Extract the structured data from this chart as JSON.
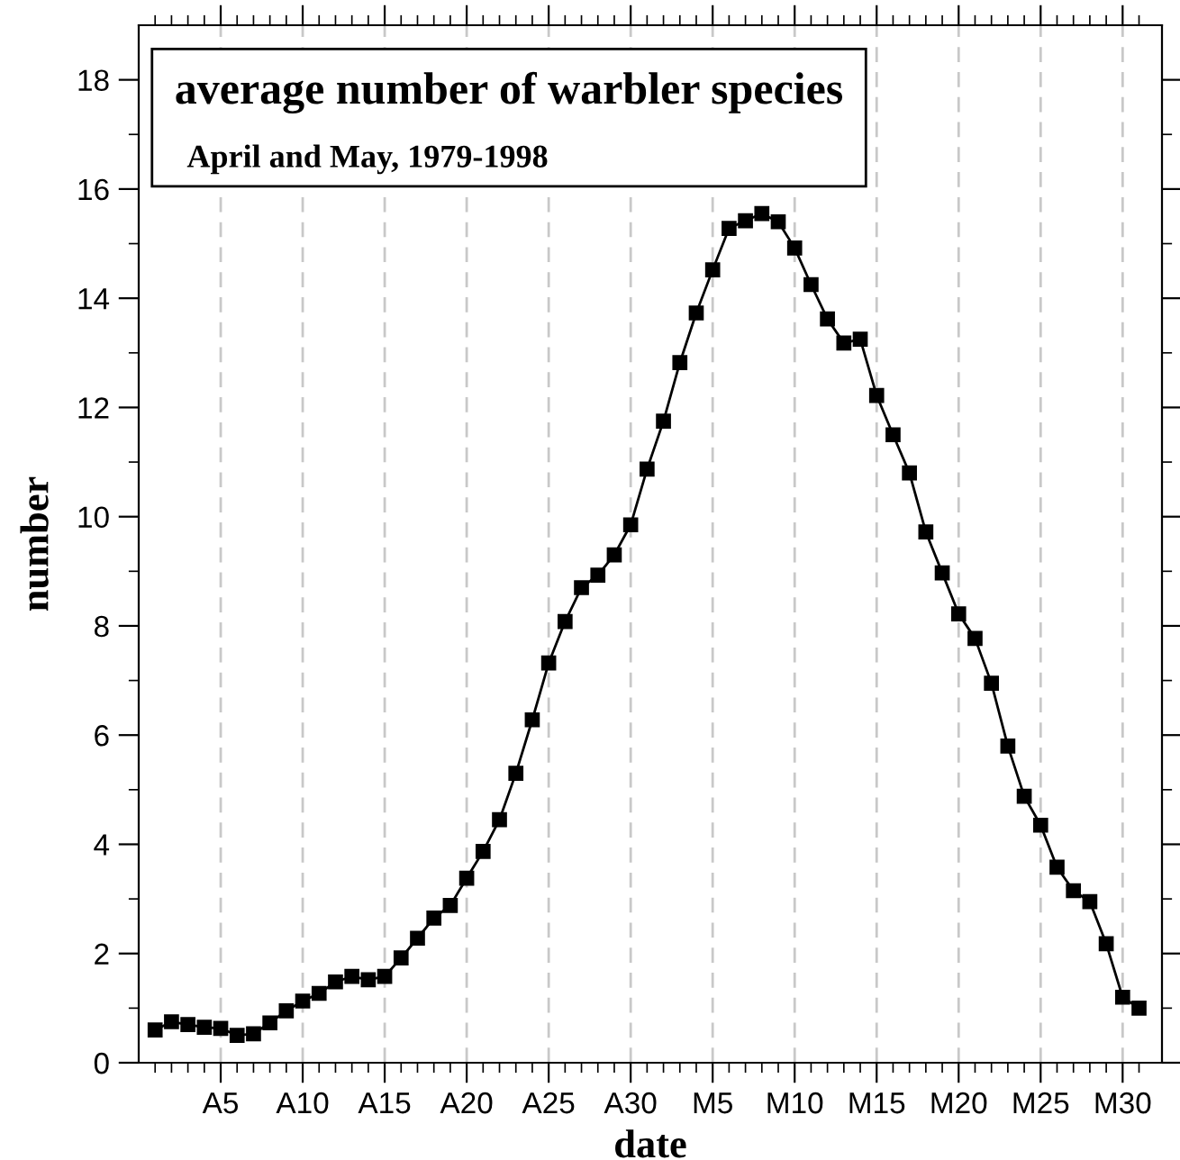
{
  "chart_data": {
    "type": "line",
    "title": "average number of warbler species",
    "subtitle": "April and May, 1979-1998",
    "xlabel": "date",
    "ylabel": "number",
    "categories": [
      null,
      null,
      null,
      null,
      "A5",
      null,
      null,
      null,
      null,
      "A10",
      null,
      null,
      null,
      null,
      "A15",
      null,
      null,
      null,
      null,
      "A20",
      null,
      null,
      null,
      null,
      "A25",
      null,
      null,
      null,
      null,
      "A30",
      null,
      null,
      null,
      null,
      "M5",
      null,
      null,
      null,
      null,
      "M10",
      null,
      null,
      null,
      null,
      "M15",
      null,
      null,
      null,
      null,
      "M20",
      null,
      null,
      null,
      null,
      "M25",
      null,
      null,
      null,
      null,
      "M30",
      null
    ],
    "series": [
      {
        "color": "#000000",
        "values": [
          0.6,
          0.75,
          0.7,
          0.65,
          0.63,
          0.5,
          0.53,
          0.73,
          0.95,
          1.13,
          1.27,
          1.48,
          1.58,
          1.52,
          1.58,
          1.92,
          2.28,
          2.65,
          2.88,
          3.38,
          3.87,
          4.45,
          5.3,
          6.28,
          7.32,
          8.08,
          8.7,
          8.93,
          9.3,
          9.85,
          10.87,
          11.75,
          12.82,
          13.73,
          14.52,
          15.28,
          15.42,
          15.55,
          15.4,
          14.92,
          14.25,
          13.62,
          13.18,
          13.25,
          12.22,
          11.5,
          10.8,
          9.72,
          8.97,
          8.22,
          7.77,
          6.95,
          5.8,
          4.88,
          4.35,
          3.58,
          3.15,
          2.95,
          2.18,
          1.2,
          1.0
        ]
      }
    ],
    "ylim": [
      0,
      19
    ],
    "yticks": [
      0,
      {
        "value": 1,
        "label": null
      },
      2,
      {
        "value": 3,
        "label": null
      },
      4,
      {
        "value": 5,
        "label": null
      },
      6,
      {
        "value": 7,
        "label": null
      },
      8,
      {
        "value": 9,
        "label": null
      },
      10,
      {
        "value": 11,
        "label": null
      },
      12,
      {
        "value": 13,
        "label": null
      },
      14,
      {
        "value": 15,
        "label": null
      },
      16,
      {
        "value": 17,
        "label": null
      },
      18
    ],
    "grid": "x",
    "marker": "square",
    "line_style": "solid"
  }
}
